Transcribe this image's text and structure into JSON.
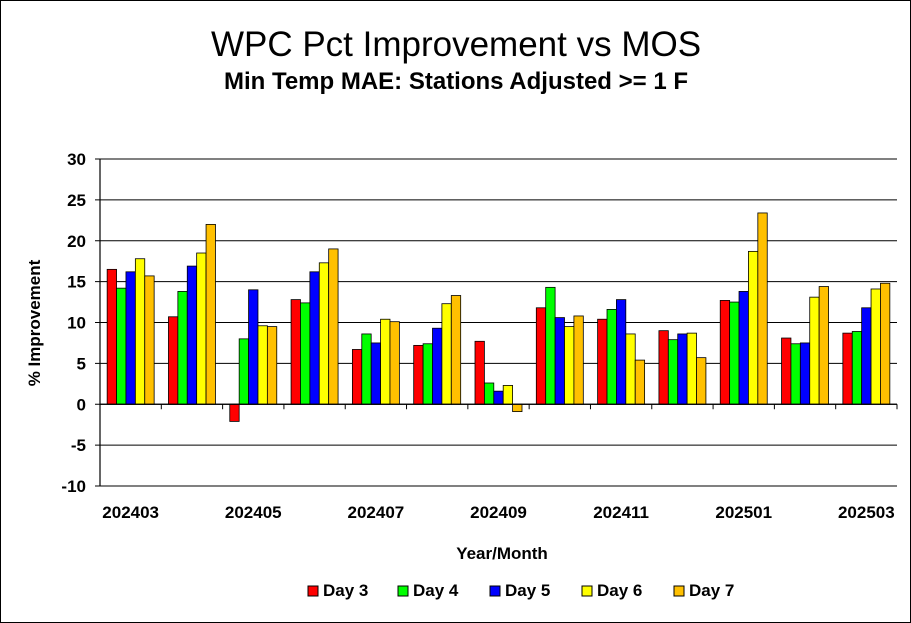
{
  "chart_data": {
    "type": "bar",
    "title": "WPC Pct Improvement vs MOS",
    "subtitle": "Min Temp MAE:  Stations Adjusted >= 1 F",
    "xlabel": "Year/Month",
    "ylabel": "% Improvement",
    "ylim": [
      -10,
      30
    ],
    "yticks": [
      -10,
      -5,
      0,
      5,
      10,
      15,
      20,
      25,
      30
    ],
    "grid": true,
    "legend_position": "bottom",
    "categories": [
      "202403",
      "202404",
      "202405",
      "202406",
      "202407",
      "202408",
      "202409",
      "202410",
      "202411",
      "202412",
      "202501",
      "202502",
      "202503"
    ],
    "x_tick_labels": [
      "202403",
      "202405",
      "202407",
      "202409",
      "202411",
      "202501",
      "202503"
    ],
    "series": [
      {
        "name": "Day 3",
        "color": "#ff0000",
        "values": [
          16.5,
          10.7,
          -2.1,
          12.8,
          6.7,
          7.2,
          7.7,
          11.8,
          10.4,
          9.0,
          12.7,
          8.1,
          8.7
        ]
      },
      {
        "name": "Day 4",
        "color": "#00ff00",
        "values": [
          14.2,
          13.8,
          8.0,
          12.4,
          8.6,
          7.4,
          2.6,
          14.3,
          11.6,
          7.9,
          12.5,
          7.4,
          8.9
        ]
      },
      {
        "name": "Day 5",
        "color": "#0000ff",
        "values": [
          16.2,
          16.9,
          14.0,
          16.2,
          7.5,
          9.3,
          1.6,
          10.6,
          12.8,
          8.6,
          13.8,
          7.5,
          11.8
        ]
      },
      {
        "name": "Day 6",
        "color": "#ffff00",
        "values": [
          17.8,
          18.5,
          9.6,
          17.3,
          10.4,
          12.3,
          2.3,
          9.5,
          8.6,
          8.7,
          18.7,
          13.1,
          14.1
        ]
      },
      {
        "name": "Day 7",
        "color": "#ffc000",
        "values": [
          15.7,
          22.0,
          9.5,
          19.0,
          10.1,
          13.3,
          -0.9,
          10.8,
          5.4,
          5.7,
          23.4,
          14.4,
          14.8
        ]
      }
    ]
  }
}
